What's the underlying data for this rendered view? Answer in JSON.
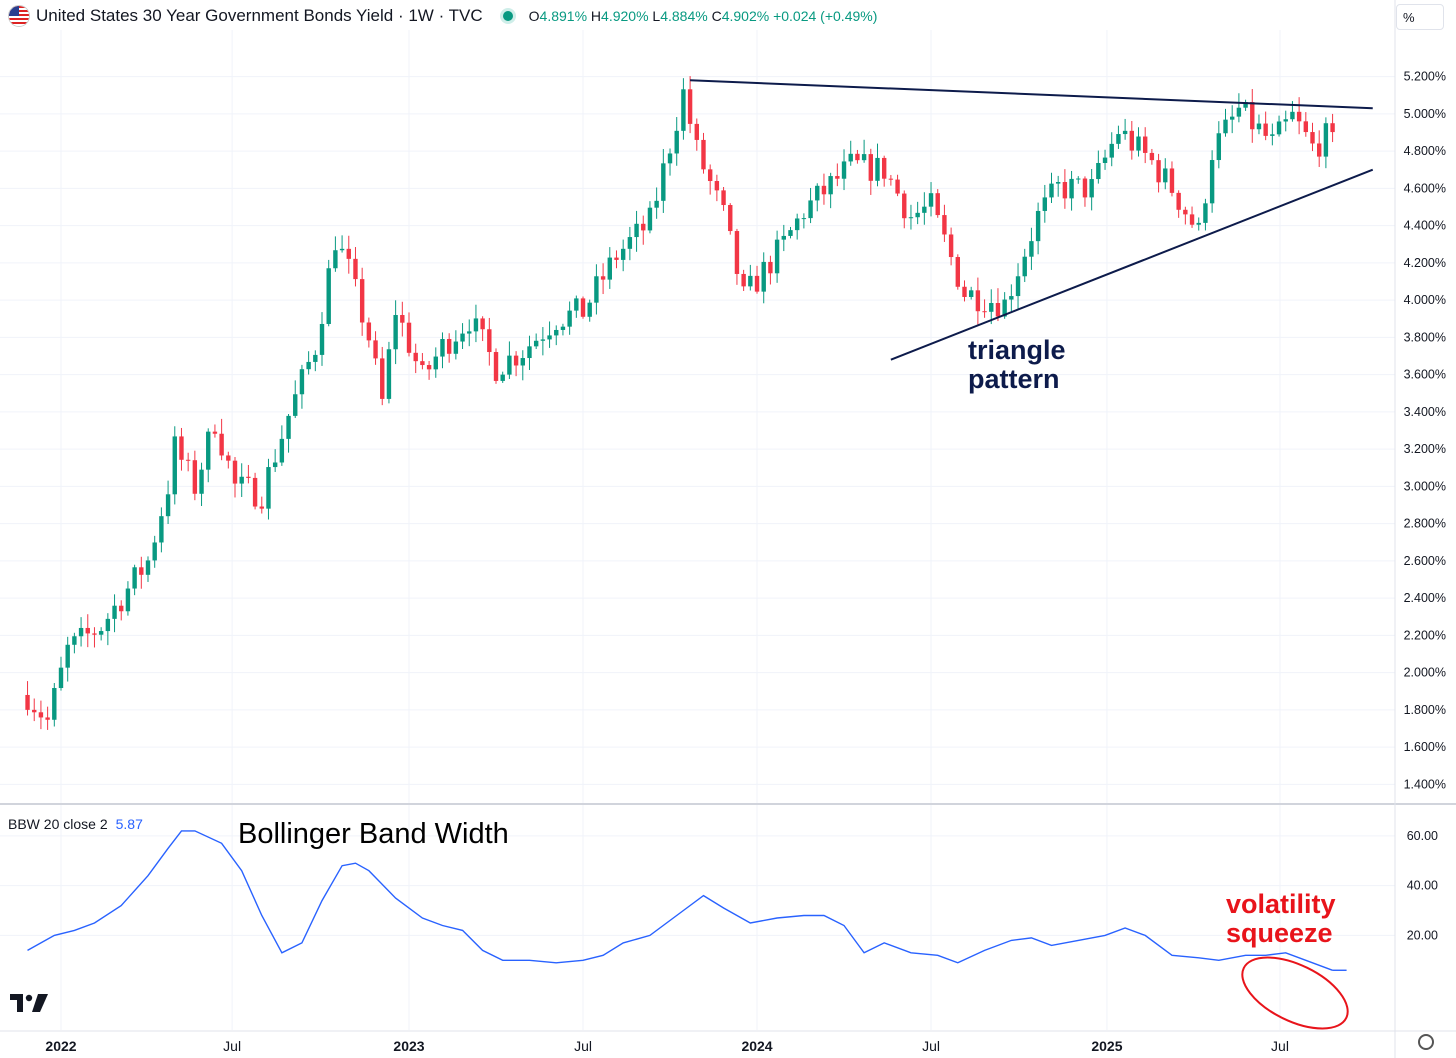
{
  "header": {
    "title": "United States 30 Year Government Bonds Yield · 1W · TVC",
    "ohlc": {
      "o": "4.891%",
      "h": "4.920%",
      "l": "4.884%",
      "c": "4.902%",
      "chg": "+0.024 (+0.49%)"
    },
    "unit": "%"
  },
  "indicator": {
    "label": "BBW 20 close 2",
    "value": "5.87"
  },
  "annotations": {
    "triangle_line1": "triangle",
    "triangle_line2": "pattern",
    "bbw_title": "Bollinger Band Width",
    "vol_line1": "volatility",
    "vol_line2": "squeeze"
  },
  "colors": {
    "up": "#089981",
    "down": "#f23645",
    "bbw": "#2962ff",
    "trend": "#0d1b4b",
    "highlight": "#e8141b"
  },
  "chart_data": [
    {
      "type": "candlestick",
      "name": "United States 30 Year Government Bonds Yield",
      "interval": "1W",
      "ylim": [
        1.3,
        5.45
      ],
      "x_ticks": [
        "2022",
        "Jul",
        "2023",
        "Jul",
        "2024",
        "Jul",
        "2025",
        "Jul"
      ],
      "y_ticks": [
        "1.400%",
        "1.600%",
        "1.800%",
        "2.000%",
        "2.200%",
        "2.400%",
        "2.600%",
        "2.800%",
        "3.000%",
        "3.200%",
        "3.400%",
        "3.600%",
        "3.800%",
        "4.000%",
        "4.200%",
        "4.400%",
        "4.600%",
        "4.800%",
        "5.000%",
        "5.200%"
      ],
      "anchors": [
        [
          "2021-11-29",
          1.88
        ],
        [
          "2021-12-20",
          1.74
        ],
        [
          "2022-01-10",
          2.12
        ],
        [
          "2022-02-14",
          2.25
        ],
        [
          "2022-03-14",
          2.45
        ],
        [
          "2022-04-04",
          2.6
        ],
        [
          "2022-04-25",
          3.0
        ],
        [
          "2022-05-02",
          3.21
        ],
        [
          "2022-05-23",
          3.0
        ],
        [
          "2022-06-13",
          3.35
        ],
        [
          "2022-07-04",
          3.0
        ],
        [
          "2022-08-01",
          2.96
        ],
        [
          "2022-08-29",
          3.38
        ],
        [
          "2022-09-26",
          3.75
        ],
        [
          "2022-10-17",
          4.33
        ],
        [
          "2022-10-31",
          4.16
        ],
        [
          "2022-11-21",
          3.8
        ],
        [
          "2022-12-05",
          3.45
        ],
        [
          "2022-12-19",
          3.95
        ],
        [
          "2023-01-16",
          3.58
        ],
        [
          "2023-02-06",
          3.75
        ],
        [
          "2023-03-06",
          3.9
        ],
        [
          "2023-04-03",
          3.64
        ],
        [
          "2023-05-01",
          3.73
        ],
        [
          "2023-06-05",
          3.9
        ],
        [
          "2023-07-03",
          3.94
        ],
        [
          "2023-08-07",
          4.24
        ],
        [
          "2023-09-11",
          4.42
        ],
        [
          "2023-10-16",
          5.11
        ],
        [
          "2023-10-30",
          4.8
        ],
        [
          "2023-11-27",
          4.45
        ],
        [
          "2023-12-18",
          4.01
        ],
        [
          "2024-01-29",
          4.3
        ],
        [
          "2024-02-19",
          4.48
        ],
        [
          "2024-04-08",
          4.72
        ],
        [
          "2024-05-13",
          4.7
        ],
        [
          "2024-06-10",
          4.45
        ],
        [
          "2024-07-01",
          4.5
        ],
        [
          "2024-08-05",
          4.04
        ],
        [
          "2024-09-16",
          3.98
        ],
        [
          "2024-10-21",
          4.45
        ],
        [
          "2024-11-11",
          4.6
        ],
        [
          "2024-12-16",
          4.6
        ],
        [
          "2025-01-13",
          4.91
        ],
        [
          "2025-02-17",
          4.74
        ],
        [
          "2025-03-10",
          4.6
        ],
        [
          "2025-04-07",
          4.36
        ],
        [
          "2025-04-21",
          4.8
        ],
        [
          "2025-05-19",
          5.02
        ],
        [
          "2025-06-23",
          4.84
        ],
        [
          "2025-07-14",
          4.98
        ],
        [
          "2025-08-04",
          4.82
        ],
        [
          "2025-08-25",
          4.9
        ]
      ],
      "trendlines": [
        {
          "from": [
            "2023-10-23",
            5.18
          ],
          "to": [
            "2025-10-06",
            5.03
          ]
        },
        {
          "from": [
            "2024-05-20",
            3.68
          ],
          "to": [
            "2025-10-06",
            4.7
          ]
        }
      ]
    },
    {
      "type": "line",
      "name": "BBW 20 close 2",
      "ylim": [
        -18,
        72
      ],
      "y_ticks": [
        "20.00",
        "40.00",
        "60.00"
      ],
      "points": [
        [
          "2021-11-29",
          14
        ],
        [
          "2021-12-13",
          17
        ],
        [
          "2021-12-27",
          20
        ],
        [
          "2022-01-17",
          22
        ],
        [
          "2022-02-07",
          25
        ],
        [
          "2022-03-07",
          32
        ],
        [
          "2022-04-04",
          44
        ],
        [
          "2022-04-25",
          55
        ],
        [
          "2022-05-09",
          62
        ],
        [
          "2022-05-23",
          62
        ],
        [
          "2022-06-20",
          57
        ],
        [
          "2022-07-11",
          46
        ],
        [
          "2022-08-01",
          28
        ],
        [
          "2022-08-22",
          13
        ],
        [
          "2022-09-12",
          17
        ],
        [
          "2022-10-03",
          34
        ],
        [
          "2022-10-24",
          48
        ],
        [
          "2022-11-07",
          49
        ],
        [
          "2022-11-21",
          46
        ],
        [
          "2022-12-19",
          35
        ],
        [
          "2023-01-16",
          27
        ],
        [
          "2023-02-06",
          24
        ],
        [
          "2023-02-27",
          22
        ],
        [
          "2023-03-20",
          14
        ],
        [
          "2023-04-10",
          10
        ],
        [
          "2023-05-08",
          10
        ],
        [
          "2023-06-05",
          9
        ],
        [
          "2023-07-03",
          10
        ],
        [
          "2023-07-24",
          12
        ],
        [
          "2023-08-14",
          17
        ],
        [
          "2023-09-11",
          20
        ],
        [
          "2023-10-16",
          30
        ],
        [
          "2023-11-06",
          36
        ],
        [
          "2023-11-27",
          31
        ],
        [
          "2023-12-25",
          25
        ],
        [
          "2024-01-22",
          27
        ],
        [
          "2024-02-19",
          28
        ],
        [
          "2024-03-11",
          28
        ],
        [
          "2024-04-01",
          24
        ],
        [
          "2024-04-22",
          13
        ],
        [
          "2024-05-13",
          17
        ],
        [
          "2024-06-10",
          13
        ],
        [
          "2024-07-08",
          12
        ],
        [
          "2024-07-29",
          9
        ],
        [
          "2024-08-26",
          14
        ],
        [
          "2024-09-23",
          18
        ],
        [
          "2024-10-14",
          19
        ],
        [
          "2024-11-04",
          16
        ],
        [
          "2024-12-02",
          18
        ],
        [
          "2024-12-30",
          20
        ],
        [
          "2025-01-20",
          23
        ],
        [
          "2025-02-10",
          20
        ],
        [
          "2025-03-10",
          12
        ],
        [
          "2025-04-07",
          11
        ],
        [
          "2025-04-28",
          10
        ],
        [
          "2025-05-26",
          12
        ],
        [
          "2025-06-16",
          12
        ],
        [
          "2025-07-07",
          13
        ],
        [
          "2025-07-28",
          10
        ],
        [
          "2025-08-25",
          6
        ]
      ]
    }
  ]
}
